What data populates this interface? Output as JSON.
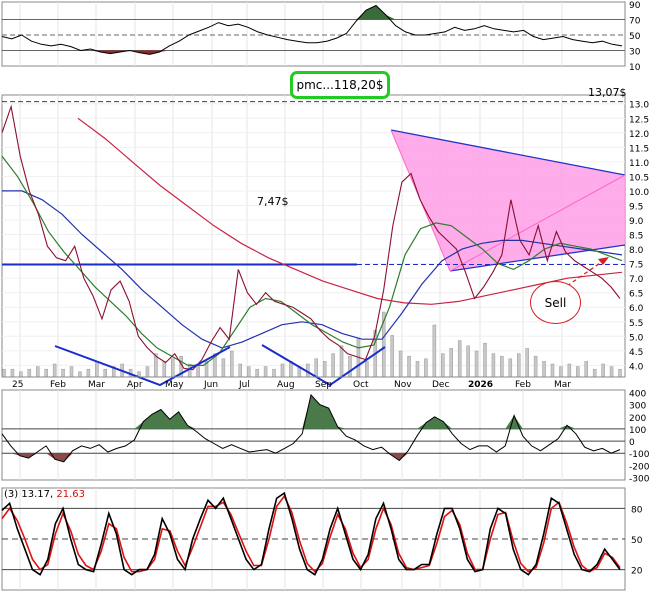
{
  "chart_data": [
    {
      "panel": "rsi",
      "type": "line",
      "y_ticks": [
        "90",
        "70",
        "50",
        "30",
        "10"
      ],
      "reference_levels": [
        30,
        50,
        70
      ],
      "values": [
        48,
        45,
        50,
        42,
        38,
        36,
        38,
        35,
        30,
        32,
        28,
        26,
        28,
        30,
        27,
        25,
        28,
        36,
        42,
        50,
        55,
        60,
        66,
        62,
        64,
        60,
        54,
        50,
        47,
        44,
        42,
        40,
        40,
        42,
        46,
        52,
        68,
        82,
        88,
        76,
        62,
        54,
        50,
        50,
        52,
        54,
        60,
        56,
        58,
        62,
        58,
        56,
        54,
        56,
        48,
        44,
        46,
        48,
        44,
        42,
        40,
        42,
        38,
        36
      ],
      "color_above": "#3a6b3a",
      "color_below": "#8b2a2a"
    },
    {
      "panel": "price",
      "type": "line",
      "y_ticks": [
        "13.0",
        "12.5",
        "12.0",
        "11.5",
        "11.0",
        "10.5",
        "10.0",
        "9.5",
        "9.0",
        "8.5",
        "8.0",
        "7.5",
        "7.0",
        "6.5",
        "6.0",
        "5.5",
        "5.0",
        "4.5",
        "4.0"
      ],
      "ylim": [
        3.6,
        13.3
      ],
      "x_ticks": [
        "25",
        "Feb",
        "Mar",
        "Apr",
        "May",
        "Jun",
        "Jul",
        "Aug",
        "Sep",
        "Oct",
        "Nov",
        "Dec",
        "2026",
        "Feb",
        "Mar"
      ],
      "price": [
        12.0,
        12.9,
        11.2,
        10.0,
        9.2,
        8.1,
        7.7,
        7.6,
        8.1,
        7.0,
        6.4,
        5.6,
        6.6,
        6.9,
        6.2,
        5.0,
        4.6,
        4.3,
        4.1,
        4.4,
        3.9,
        3.85,
        4.2,
        4.8,
        5.3,
        4.9,
        7.3,
        6.5,
        6.1,
        6.5,
        6.2,
        6.1,
        6.0,
        5.8,
        5.6,
        5.2,
        4.9,
        4.7,
        4.4,
        4.3,
        4.2,
        5.0,
        6.6,
        8.8,
        10.3,
        10.6,
        9.7,
        9.1,
        8.6,
        8.3,
        8.0,
        7.2,
        6.3,
        6.7,
        7.2,
        7.8,
        9.7,
        8.3,
        7.8,
        8.8,
        7.6,
        8.6,
        7.9,
        7.6,
        7.4,
        7.2,
        7.0,
        6.7,
        6.3
      ],
      "series": [
        {
          "name": "",
          "color": "#2e7d2e",
          "values": [
            11.2,
            10.5,
            9.6,
            8.6,
            7.9,
            7.3,
            6.7,
            6.2,
            5.7,
            5.1,
            4.6,
            4.3,
            4.0,
            4.0,
            4.4,
            5.2,
            6.0,
            6.3,
            6.2,
            5.8,
            5.4,
            5.1,
            4.8,
            4.6,
            4.7,
            6.0,
            7.8,
            8.7,
            8.9,
            8.8,
            8.4,
            8.0,
            7.5,
            7.3,
            7.6,
            8.0,
            8.2,
            8.1,
            8.0,
            7.8,
            7.6
          ]
        },
        {
          "name": "",
          "color": "#2233aa",
          "values": [
            10.0,
            10.0,
            9.7,
            9.2,
            8.5,
            7.9,
            7.3,
            6.6,
            6.0,
            5.4,
            4.9,
            4.6,
            4.8,
            5.1,
            5.4,
            5.5,
            5.4,
            5.1,
            4.9,
            4.9,
            5.8,
            6.8,
            7.6,
            8.0,
            8.2,
            8.3,
            8.3,
            8.2,
            8.1,
            8.0,
            7.9,
            7.8
          ]
        },
        {
          "name": "",
          "color": "#cc2244",
          "values": [
            12.5,
            11.8,
            11.0,
            10.2,
            9.5,
            8.8,
            8.2,
            7.7,
            7.3,
            6.9,
            6.6,
            6.3,
            6.15,
            6.1,
            6.2,
            6.4,
            6.6,
            6.8,
            7.0,
            7.1,
            7.2
          ]
        }
      ],
      "annotations": [
        {
          "label": "13,07$"
        },
        {
          "label": "7,47$"
        },
        {
          "label": "pmc...118,20$"
        },
        {
          "label": "Sell"
        }
      ],
      "volume": [
        3,
        3,
        2,
        3,
        4,
        3,
        5,
        3,
        4,
        2,
        3,
        6,
        3,
        4,
        5,
        3,
        2,
        4,
        9,
        6,
        7,
        8,
        5,
        4,
        6,
        9,
        7,
        10,
        5,
        4,
        3,
        4,
        3,
        5,
        6,
        4,
        5,
        7,
        6,
        9,
        12,
        8,
        15,
        6,
        18,
        25,
        16,
        10,
        8,
        6,
        7,
        20,
        9,
        11,
        14,
        12,
        10,
        13,
        9,
        8,
        7,
        9,
        11,
        8,
        6,
        5,
        4,
        5,
        4,
        6,
        3,
        5,
        4,
        3
      ]
    },
    {
      "panel": "cci",
      "type": "line",
      "y_ticks": [
        "400",
        "300",
        "200",
        "100",
        "0",
        "-100",
        "-200",
        "-300"
      ],
      "ylim": [
        -320,
        420
      ],
      "reference_levels": [
        -100,
        0,
        100
      ],
      "values": [
        60,
        -40,
        -120,
        -140,
        -90,
        -40,
        -150,
        -170,
        -80,
        -40,
        -60,
        -30,
        -90,
        -60,
        -40,
        10,
        160,
        220,
        260,
        180,
        240,
        130,
        80,
        20,
        -20,
        -60,
        -30,
        -60,
        -90,
        -80,
        -70,
        -100,
        -60,
        -20,
        60,
        380,
        300,
        270,
        120,
        40,
        10,
        -40,
        -70,
        -50,
        -110,
        -160,
        -80,
        40,
        150,
        200,
        160,
        60,
        -20,
        -70,
        -40,
        -40,
        -90,
        -40,
        210,
        40,
        -40,
        -80,
        -30,
        20,
        130,
        60,
        -50,
        -80,
        -60,
        -100,
        -70
      ]
    },
    {
      "panel": "stochastic",
      "type": "line",
      "legend_prefix": "(3)",
      "legend_value_1": "13.17,",
      "legend_value_2": "21.63",
      "y_ticks": [
        "80",
        "50",
        "20"
      ],
      "reference_levels": [
        20,
        50,
        80
      ],
      "fast": [
        78,
        85,
        60,
        40,
        20,
        15,
        30,
        65,
        80,
        50,
        25,
        20,
        18,
        45,
        75,
        55,
        20,
        15,
        20,
        20,
        35,
        70,
        55,
        30,
        20,
        50,
        70,
        88,
        80,
        90,
        70,
        50,
        30,
        20,
        25,
        60,
        90,
        95,
        70,
        40,
        20,
        15,
        30,
        60,
        80,
        55,
        30,
        20,
        35,
        70,
        85,
        60,
        30,
        20,
        20,
        25,
        25,
        55,
        80,
        80,
        60,
        30,
        18,
        20,
        60,
        80,
        75,
        40,
        20,
        15,
        25,
        55,
        90,
        85,
        60,
        35,
        20,
        18,
        25,
        40,
        30,
        20
      ],
      "slow": [
        70,
        80,
        68,
        50,
        30,
        20,
        25,
        55,
        75,
        58,
        35,
        24,
        20,
        38,
        65,
        60,
        32,
        18,
        18,
        20,
        30,
        60,
        58,
        38,
        24,
        42,
        62,
        82,
        82,
        86,
        74,
        56,
        38,
        24,
        24,
        50,
        82,
        92,
        76,
        48,
        26,
        18,
        26,
        52,
        74,
        60,
        36,
        22,
        30,
        60,
        80,
        64,
        36,
        22,
        20,
        22,
        24,
        46,
        72,
        78,
        64,
        36,
        20,
        20,
        50,
        74,
        76,
        48,
        26,
        18,
        22,
        46,
        80,
        86,
        66,
        42,
        24,
        18,
        22,
        36,
        32,
        22
      ]
    }
  ]
}
